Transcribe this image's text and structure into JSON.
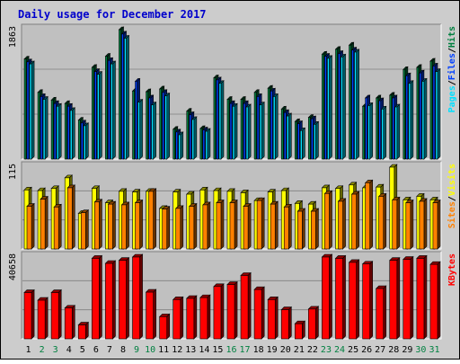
{
  "chart_data": {
    "type": "bar",
    "title": "Daily usage for December 2017",
    "colors": {
      "outer_bg": "#cccccc",
      "plot_bg": "#c0c0c0",
      "title": "#0000cc",
      "hits": "#008040",
      "files": "#0040ff",
      "pages": "#00e0ff",
      "visits": "#ffff00",
      "sites": "#ff8000",
      "kbytes": "#ff0000",
      "weekend_label": "#008040",
      "weekday_label": "#000000"
    },
    "categories": [
      "1",
      "2",
      "3",
      "4",
      "5",
      "6",
      "7",
      "8",
      "9",
      "10",
      "11",
      "12",
      "13",
      "14",
      "15",
      "16",
      "17",
      "18",
      "19",
      "20",
      "21",
      "22",
      "23",
      "24",
      "25",
      "26",
      "27",
      "28",
      "29",
      "30",
      "31"
    ],
    "weekend_days": [
      "2",
      "3",
      "9",
      "10",
      "16",
      "17",
      "23",
      "24",
      "30",
      "31"
    ],
    "panels": [
      {
        "id": "hits-files-pages",
        "ymax_label": "1863",
        "ymax": 1863,
        "legend": [
          {
            "name": "Pages",
            "key": "pages"
          },
          {
            "name": "/",
            "key": "sep"
          },
          {
            "name": "Files",
            "key": "files"
          },
          {
            "name": "/",
            "key": "sep"
          },
          {
            "name": "Hits",
            "key": "hits"
          }
        ],
        "series": [
          {
            "name": "Hits",
            "key": "hits",
            "values": [
              1440,
              960,
              850,
              800,
              560,
              1320,
              1480,
              1863,
              980,
              970,
              1010,
              430,
              690,
              440,
              1170,
              860,
              860,
              960,
              1020,
              720,
              540,
              600,
              1510,
              1580,
              1640,
              760,
              880,
              920,
              1290,
              1320,
              1410
            ]
          },
          {
            "name": "Files",
            "key": "files",
            "values": [
              1400,
              900,
              800,
              760,
              520,
              1260,
              1420,
              1800,
              1120,
              880,
              960,
              390,
              640,
              420,
              1140,
              800,
              800,
              900,
              980,
              670,
              510,
              580,
              1480,
              1520,
              1570,
              880,
              840,
              880,
              1200,
              1240,
              1340
            ]
          },
          {
            "name": "Pages",
            "key": "pages",
            "values": [
              1370,
              860,
              760,
              700,
              480,
              1220,
              1370,
              1740,
              820,
              780,
              910,
              350,
              570,
              400,
              1090,
              760,
              750,
              780,
              900,
              620,
              410,
              500,
              1450,
              1470,
              1540,
              770,
              720,
              750,
              1090,
              1120,
              1260
            ]
          }
        ]
      },
      {
        "id": "visits-sites",
        "ymax_label": "115",
        "ymax": 115,
        "legend": [
          {
            "name": "Sites",
            "key": "sites"
          },
          {
            "name": "/",
            "key": "sep"
          },
          {
            "name": "Visits",
            "key": "visits"
          }
        ],
        "series": [
          {
            "name": "Visits",
            "key": "visits",
            "values": [
              83,
              82,
              85,
              100,
              50,
              85,
              65,
              81,
              80,
              81,
              57,
              80,
              77,
              83,
              82,
              81,
              79,
              68,
              80,
              82,
              64,
              63,
              86,
              85,
              90,
              86,
              87,
              115,
              69,
              74,
              69
            ]
          },
          {
            "name": "Sites",
            "key": "sites",
            "values": [
              60,
              70,
              59,
              86,
              51,
              66,
              63,
              62,
              65,
              81,
              56,
              57,
              60,
              62,
              65,
              65,
              60,
              68,
              63,
              59,
              53,
              53,
              78,
              67,
              77,
              93,
              74,
              69,
              65,
              67,
              65
            ]
          }
        ]
      },
      {
        "id": "kbytes",
        "ymax_label": "40658",
        "ymax": 40658,
        "legend": [
          {
            "name": "KBytes",
            "key": "kbytes"
          }
        ],
        "series": [
          {
            "name": "KBytes",
            "key": "kbytes",
            "values": [
              23000,
              19200,
              23000,
              15300,
              6900,
              40000,
              37500,
              39000,
              40658,
              23200,
              11000,
              19500,
              20100,
              20500,
              26000,
              27000,
              31500,
              24500,
              19500,
              14500,
              7500,
              14800,
              40658,
              40000,
              38000,
              37200,
              25000,
              39000,
              39500,
              40000,
              37000
            ]
          }
        ]
      }
    ]
  }
}
